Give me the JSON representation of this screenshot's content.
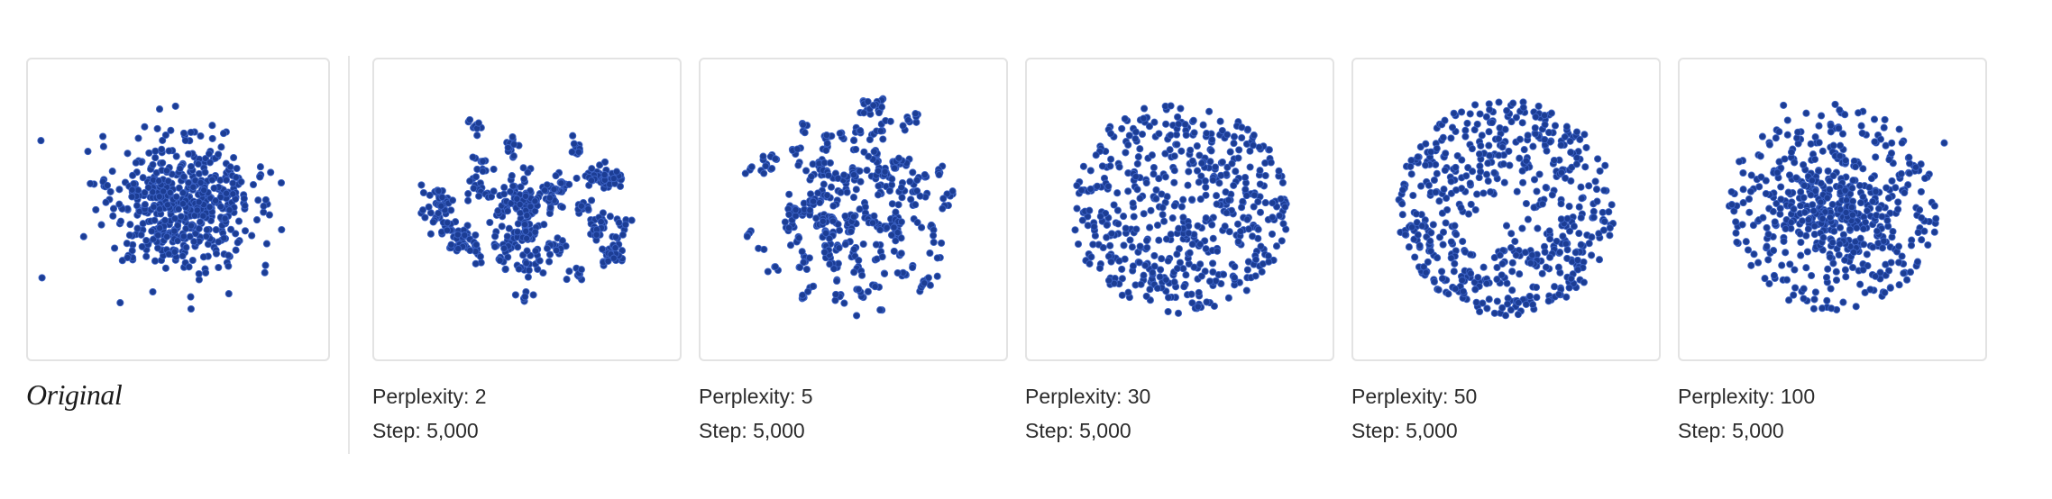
{
  "colors": {
    "dot": "#1c3d94",
    "dot_stroke": "#3c62c4",
    "panel_border": "#e3e3e3"
  },
  "original": {
    "label": "Original"
  },
  "chart_data": [
    {
      "type": "scatter",
      "title": "Original",
      "pattern": "gaussian",
      "seed": 11
    },
    {
      "type": "scatter",
      "perplexity_label": "Perplexity: 2",
      "step_label": "Step: 5,000",
      "pattern": "clusters",
      "seed": 23
    },
    {
      "type": "scatter",
      "perplexity_label": "Perplexity: 5",
      "step_label": "Step: 5,000",
      "pattern": "pairs",
      "seed": 37
    },
    {
      "type": "scatter",
      "perplexity_label": "Perplexity: 30",
      "step_label": "Step: 5,000",
      "pattern": "uniform",
      "seed": 41
    },
    {
      "type": "scatter",
      "perplexity_label": "Perplexity: 50",
      "step_label": "Step: 5,000",
      "pattern": "ring",
      "seed": 53
    },
    {
      "type": "scatter",
      "perplexity_label": "Perplexity: 100",
      "step_label": "Step: 5,000",
      "pattern": "dense",
      "seed": 67
    }
  ]
}
